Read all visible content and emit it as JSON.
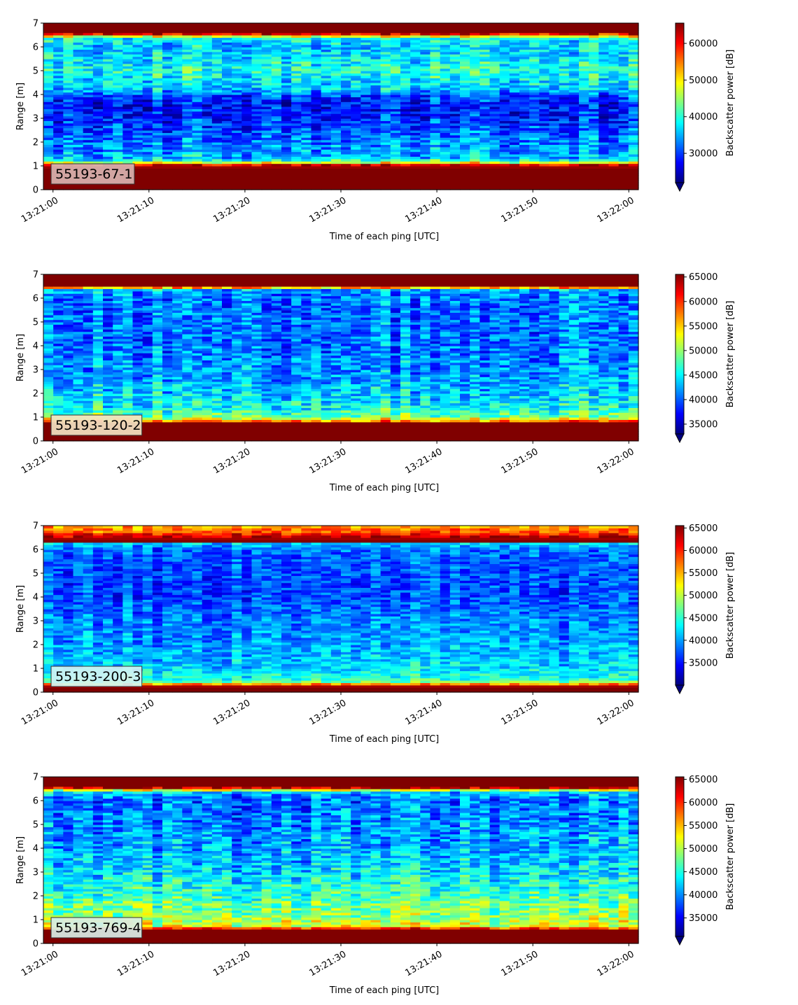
{
  "colormap": "jet",
  "chart_data": [
    {
      "type": "heatmap",
      "label": "55193-67-1",
      "label_box_color": "#d9b3b0",
      "xlabel": "Time of each ping [UTC]",
      "ylabel": "Range [m]",
      "ylim": [
        0,
        7
      ],
      "yticks": [
        0,
        1,
        2,
        3,
        4,
        5,
        6,
        7
      ],
      "xlim": [
        "13:20:59",
        "13:22:01"
      ],
      "xticks": [
        "13:21:00",
        "13:21:10",
        "13:21:20",
        "13:21:30",
        "13:21:40",
        "13:21:50",
        "13:22:00"
      ],
      "grid": false,
      "colorbar": {
        "label": "Backscatter power [dB]",
        "range": [
          22000,
          65535
        ],
        "ticks": [
          30000,
          40000,
          50000,
          60000
        ],
        "extend": "min"
      },
      "profile": {
        "range_m": [
          0,
          0.25,
          0.35,
          0.9,
          1.05,
          1.15,
          1.3,
          2.0,
          3.0,
          3.5,
          3.9,
          4.2,
          5.0,
          6.0,
          6.4,
          6.5,
          6.6,
          7.0
        ],
        "power": [
          65535,
          65535,
          65535,
          65535,
          62000,
          48000,
          36000,
          33000,
          29000,
          28000,
          30000,
          36000,
          40000,
          36000,
          39000,
          56000,
          65535,
          65535
        ],
        "noise": 6000
      }
    },
    {
      "type": "heatmap",
      "label": "55193-120-2",
      "label_box_color": "#f3e3c2",
      "xlabel": "Time of each ping [UTC]",
      "ylabel": "Range [m]",
      "ylim": [
        0,
        7
      ],
      "yticks": [
        0,
        1,
        2,
        3,
        4,
        5,
        6,
        7
      ],
      "xlim": [
        "13:20:59",
        "13:22:01"
      ],
      "xticks": [
        "13:21:00",
        "13:21:10",
        "13:21:20",
        "13:21:30",
        "13:21:40",
        "13:21:50",
        "13:22:00"
      ],
      "grid": false,
      "colorbar": {
        "label": "Backscatter power [dB]",
        "range": [
          33000,
          65535
        ],
        "ticks": [
          35000,
          40000,
          45000,
          50000,
          55000,
          60000,
          65000
        ],
        "extend": "min"
      },
      "profile": {
        "range_m": [
          0,
          0.25,
          0.35,
          0.75,
          0.9,
          1.05,
          1.4,
          2.0,
          3.0,
          4.0,
          5.0,
          6.0,
          6.35,
          6.45,
          6.55,
          7.0
        ],
        "power": [
          65535,
          65535,
          65535,
          65535,
          54000,
          49000,
          46000,
          44000,
          42000,
          41000,
          41000,
          41000,
          43000,
          56000,
          65535,
          65535
        ],
        "noise": 4500
      }
    },
    {
      "type": "heatmap",
      "label": "55193-200-3",
      "label_box_color": "#d3f3f3",
      "xlabel": "Time of each ping [UTC]",
      "ylabel": "Range [m]",
      "ylim": [
        0,
        7
      ],
      "yticks": [
        0,
        1,
        2,
        3,
        4,
        5,
        6,
        7
      ],
      "xlim": [
        "13:20:59",
        "13:22:01"
      ],
      "xticks": [
        "13:21:00",
        "13:21:10",
        "13:21:20",
        "13:21:30",
        "13:21:40",
        "13:21:50",
        "13:22:00"
      ],
      "grid": false,
      "colorbar": {
        "label": "Backscatter power [dB]",
        "range": [
          30000,
          65535
        ],
        "ticks": [
          35000,
          40000,
          45000,
          50000,
          55000,
          60000,
          65000
        ],
        "extend": "min"
      },
      "profile": {
        "range_m": [
          0,
          0.2,
          0.3,
          0.4,
          0.6,
          1.0,
          2.0,
          3.0,
          4.0,
          5.0,
          6.0,
          6.25,
          6.35,
          6.5,
          6.75,
          7.0
        ],
        "power": [
          65535,
          65535,
          63000,
          48000,
          44000,
          42000,
          40000,
          39000,
          37000,
          37000,
          38000,
          42000,
          65535,
          64000,
          58000,
          55000
        ],
        "noise": 4000
      }
    },
    {
      "type": "heatmap",
      "label": "55193-769-4",
      "label_box_color": "#d9eee6",
      "xlabel": "Time of each ping [UTC]",
      "ylabel": "Range [m]",
      "ylim": [
        0,
        7
      ],
      "yticks": [
        0,
        1,
        2,
        3,
        4,
        5,
        6,
        7
      ],
      "xlim": [
        "13:20:59",
        "13:22:01"
      ],
      "xticks": [
        "13:21:00",
        "13:21:10",
        "13:21:20",
        "13:21:30",
        "13:21:40",
        "13:21:50",
        "13:22:00"
      ],
      "grid": false,
      "colorbar": {
        "label": "Backscatter power [dB]",
        "range": [
          31000,
          65535
        ],
        "ticks": [
          35000,
          40000,
          45000,
          50000,
          55000,
          60000,
          65000
        ],
        "extend": "min"
      },
      "profile": {
        "range_m": [
          0,
          0.25,
          0.35,
          0.6,
          0.7,
          1.2,
          2.0,
          3.0,
          4.0,
          5.0,
          6.0,
          6.4,
          6.5,
          6.6,
          7.0
        ],
        "power": [
          65535,
          65535,
          65535,
          65535,
          52000,
          49000,
          46000,
          43000,
          41000,
          40000,
          39000,
          42000,
          60000,
          65535,
          65535
        ],
        "noise": 5000
      }
    }
  ]
}
